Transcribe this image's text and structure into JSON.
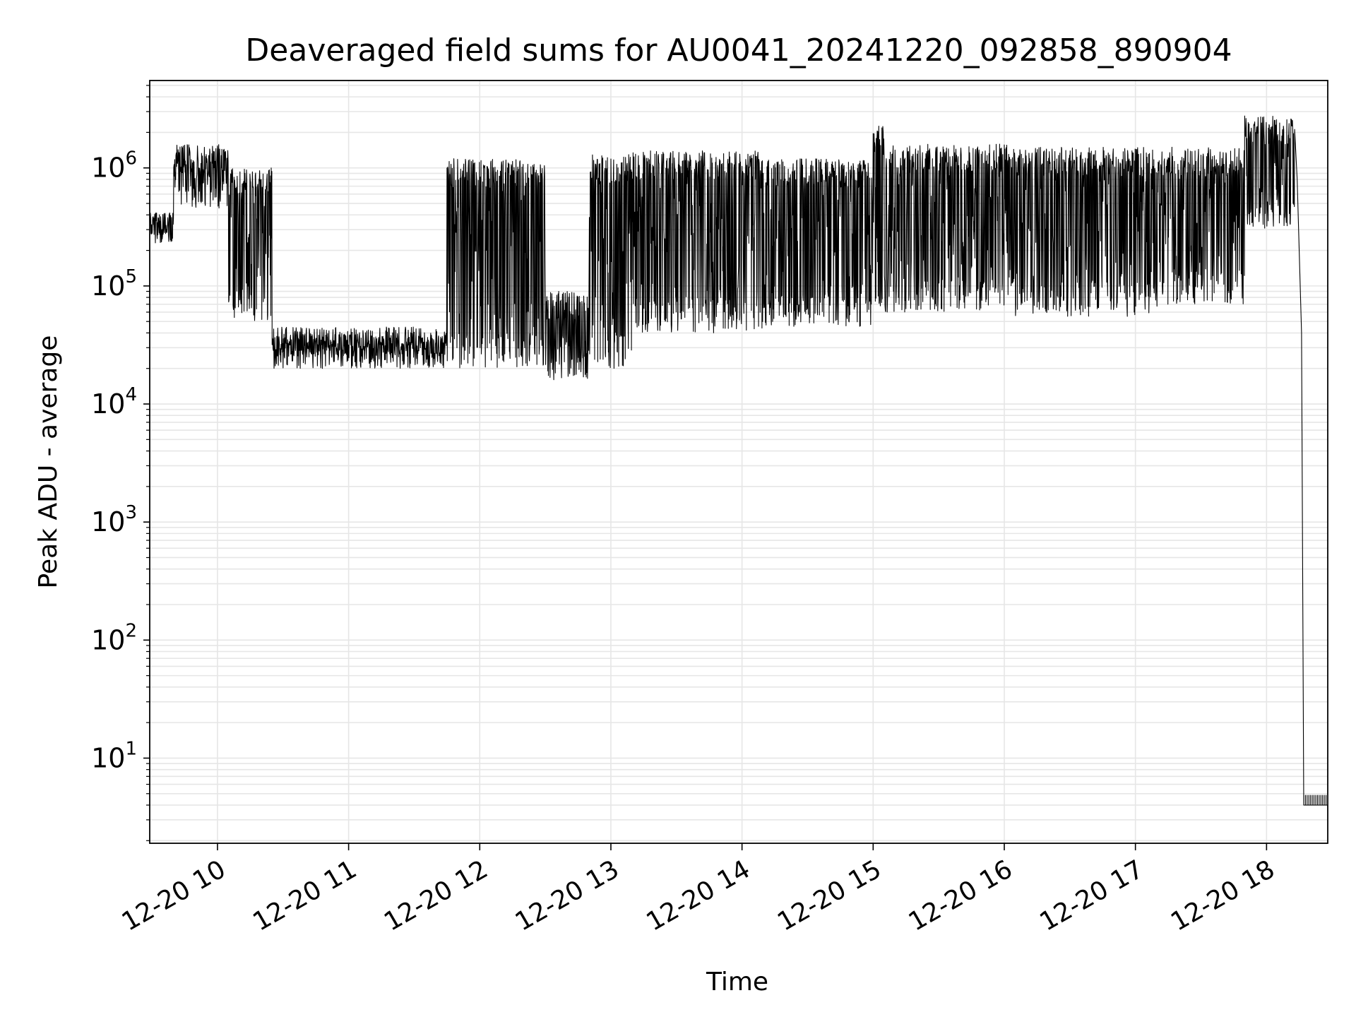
{
  "chart_data": {
    "type": "line",
    "title": "Deaveraged field sums for AU0041_20241220_092858_890904",
    "xlabel": "Time",
    "ylabel": "Peak ADU - average",
    "yscale": "log",
    "xlim": [
      "12-20 09:29",
      "12-20 18:28"
    ],
    "ylim": [
      1.9,
      5500000.0
    ],
    "grid": true,
    "line_color": "#000000",
    "grid_color": "#e6e6e6",
    "x_ticks": [
      "12-20 10",
      "12-20 11",
      "12-20 12",
      "12-20 13",
      "12-20 14",
      "12-20 15",
      "12-20 16",
      "12-20 17",
      "12-20 18"
    ],
    "x_tick_hours": [
      10,
      11,
      12,
      13,
      14,
      15,
      16,
      17,
      18
    ],
    "y_ticks": [
      {
        "base": "10",
        "exp": "1",
        "value": 10
      },
      {
        "base": "10",
        "exp": "2",
        "value": 100
      },
      {
        "base": "10",
        "exp": "3",
        "value": 1000
      },
      {
        "base": "10",
        "exp": "4",
        "value": 10000
      },
      {
        "base": "10",
        "exp": "5",
        "value": 100000
      },
      {
        "base": "10",
        "exp": "6",
        "value": 1000000
      }
    ],
    "series": [
      {
        "color": "#000000",
        "segments": [
          {
            "start": "12-20 09:29",
            "end": "12-20 09:40",
            "floor": 230000,
            "ceil": 420000
          },
          {
            "start": "12-20 09:40",
            "end": "12-20 10:05",
            "floor": 450000,
            "ceil": 1600000
          },
          {
            "start": "12-20 10:05",
            "end": "12-20 10:25",
            "floor": 50000,
            "ceil": 1000000
          },
          {
            "start": "12-20 10:25",
            "end": "12-20 11:45",
            "floor": 20000,
            "ceil": 45000
          },
          {
            "start": "12-20 11:45",
            "end": "12-20 12:30",
            "floor": 20000,
            "ceil": 1200000
          },
          {
            "start": "12-20 12:30",
            "end": "12-20 12:50",
            "floor": 16000,
            "ceil": 90000
          },
          {
            "start": "12-20 12:50",
            "end": "12-20 13:10",
            "floor": 20000,
            "ceil": 1300000
          },
          {
            "start": "12-20 13:10",
            "end": "12-20 14:10",
            "floor": 40000,
            "ceil": 1400000
          },
          {
            "start": "12-20 14:10",
            "end": "12-20 15:00",
            "floor": 45000,
            "ceil": 1200000
          },
          {
            "start": "12-20 15:00",
            "end": "12-20 15:05",
            "floor": 60000,
            "ceil": 2400000
          },
          {
            "start": "12-20 15:05",
            "end": "12-20 16:05",
            "floor": 60000,
            "ceil": 1600000
          },
          {
            "start": "12-20 16:05",
            "end": "12-20 17:10",
            "floor": 55000,
            "ceil": 1500000
          },
          {
            "start": "12-20 17:10",
            "end": "12-20 17:50",
            "floor": 70000,
            "ceil": 1500000
          },
          {
            "start": "12-20 17:50",
            "end": "12-20 18:13",
            "floor": 300000,
            "ceil": 2800000
          }
        ],
        "points": [
          {
            "x": "12-20 18:14",
            "y": 800000
          },
          {
            "x": "12-20 18:16",
            "y": 40000
          },
          {
            "x": "12-20 18:17",
            "y": 4
          },
          {
            "x": "12-20 18:28",
            "y": 4
          }
        ]
      }
    ]
  }
}
